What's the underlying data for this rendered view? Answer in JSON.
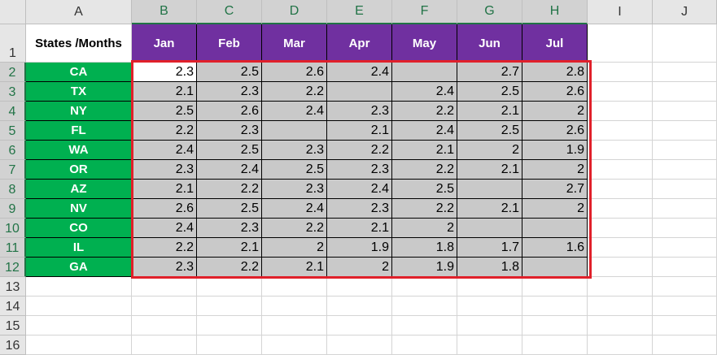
{
  "columns": [
    "A",
    "B",
    "C",
    "D",
    "E",
    "F",
    "G",
    "H",
    "I",
    "J"
  ],
  "rows": [
    "1",
    "2",
    "3",
    "4",
    "5",
    "6",
    "7",
    "8",
    "9",
    "10",
    "11",
    "12",
    "13",
    "14",
    "15",
    "16"
  ],
  "header_label": "States /Months",
  "months": [
    "Jan",
    "Feb",
    "Mar",
    "Apr",
    "May",
    "Jun",
    "Jul"
  ],
  "states": [
    "CA",
    "TX",
    "NY",
    "FL",
    "WA",
    "OR",
    "AZ",
    "NV",
    "CO",
    "IL",
    "GA"
  ],
  "values": [
    [
      "2.3",
      "2.5",
      "2.6",
      "2.4",
      "",
      "2.7",
      "2.8"
    ],
    [
      "2.1",
      "2.3",
      "2.2",
      "",
      "2.4",
      "2.5",
      "2.6"
    ],
    [
      "2.5",
      "2.6",
      "2.4",
      "2.3",
      "2.2",
      "2.1",
      "2"
    ],
    [
      "2.2",
      "2.3",
      "",
      "2.1",
      "2.4",
      "2.5",
      "2.6"
    ],
    [
      "2.4",
      "2.5",
      "2.3",
      "2.2",
      "2.1",
      "2",
      "1.9"
    ],
    [
      "2.3",
      "2.4",
      "2.5",
      "2.3",
      "2.2",
      "2.1",
      "2"
    ],
    [
      "2.1",
      "2.2",
      "2.3",
      "2.4",
      "2.5",
      "",
      "2.7"
    ],
    [
      "2.6",
      "2.5",
      "2.4",
      "2.3",
      "2.2",
      "2.1",
      "2"
    ],
    [
      "2.4",
      "2.3",
      "2.2",
      "2.1",
      "2",
      "",
      ""
    ],
    [
      "2.2",
      "2.1",
      "2",
      "1.9",
      "1.8",
      "1.7",
      "1.6"
    ],
    [
      "2.3",
      "2.2",
      "2.1",
      "2",
      "1.9",
      "1.8",
      ""
    ]
  ],
  "colors": {
    "header_purple": "#7030a0",
    "state_green": "#00b050",
    "data_gray": "#c9c9c9",
    "selection_red": "#e0202a",
    "excel_green": "#217346"
  }
}
